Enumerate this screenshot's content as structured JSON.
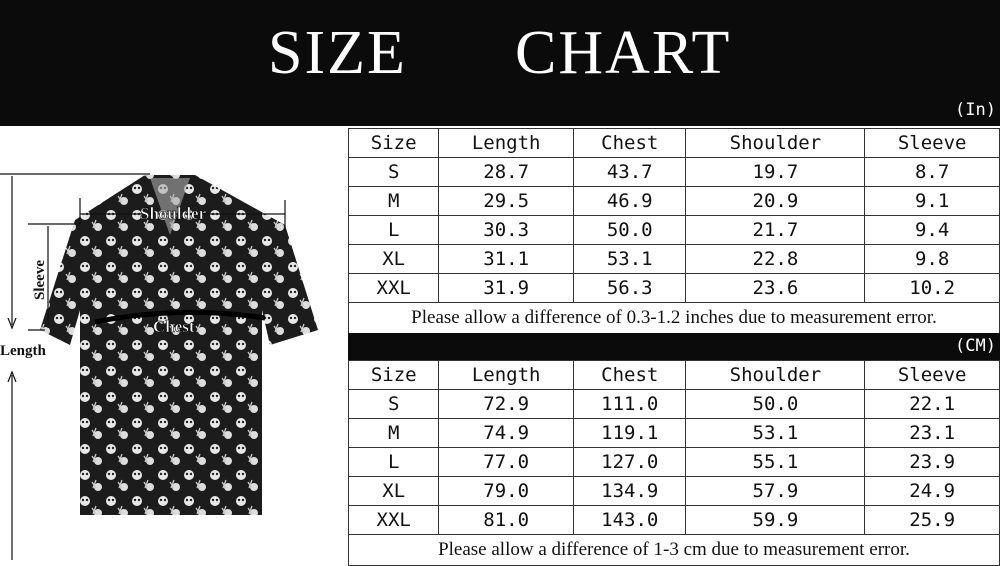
{
  "title": {
    "word1": "SIZE",
    "word2": "CHART"
  },
  "inch_table": {
    "unit": "(In)",
    "headers": [
      "Size",
      "Length",
      "Chest",
      "Shoulder",
      "Sleeve"
    ],
    "rows": [
      [
        "S",
        "28.7",
        "43.7",
        "19.7",
        "8.7"
      ],
      [
        "M",
        "29.5",
        "46.9",
        "20.9",
        "9.1"
      ],
      [
        "L",
        "30.3",
        "50.0",
        "21.7",
        "9.4"
      ],
      [
        "XL",
        "31.1",
        "53.1",
        "22.8",
        "9.8"
      ],
      [
        "XXL",
        "31.9",
        "56.3",
        "23.6",
        "10.2"
      ]
    ],
    "note": "Please allow a difference of 0.3-1.2 inches due to measurement error."
  },
  "cm_table": {
    "unit": "(CM)",
    "headers": [
      "Size",
      "Length",
      "Chest",
      "Shoulder",
      "Sleeve"
    ],
    "rows": [
      [
        "S",
        "72.9",
        "111.0",
        "50.0",
        "22.1"
      ],
      [
        "M",
        "74.9",
        "119.1",
        "53.1",
        "23.1"
      ],
      [
        "L",
        "77.0",
        "127.0",
        "55.1",
        "23.9"
      ],
      [
        "XL",
        "79.0",
        "134.9",
        "57.9",
        "24.9"
      ],
      [
        "XXL",
        "81.0",
        "143.0",
        "59.9",
        "25.9"
      ]
    ],
    "note": "Please allow a difference of 1-3 cm due to measurement error."
  },
  "diagram": {
    "shoulder": "Shoulder",
    "sleeve": "Sleeve",
    "chest": "Chest",
    "length": "Length"
  }
}
